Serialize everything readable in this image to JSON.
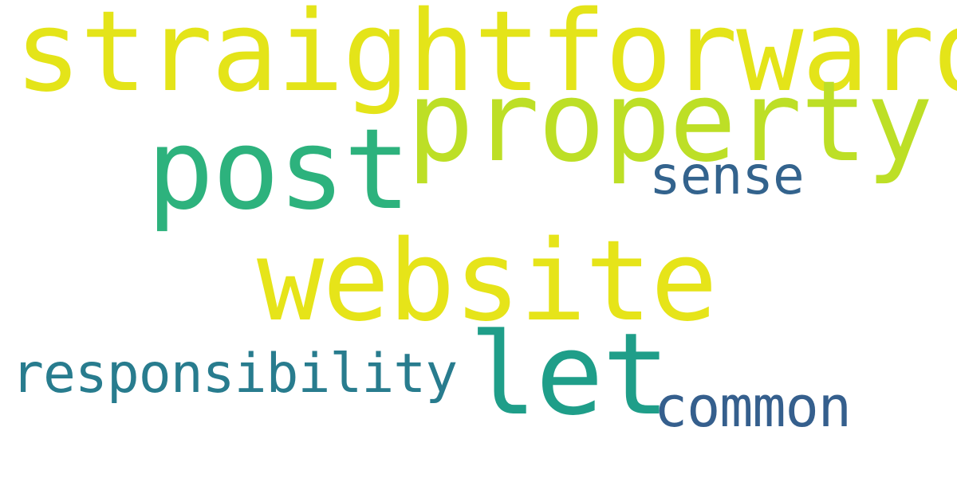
{
  "words": [
    {
      "id": "straightforward",
      "text": "straightforward",
      "color": "#e4e419"
    },
    {
      "id": "property",
      "text": "property",
      "color": "#bddf26"
    },
    {
      "id": "post",
      "text": "post",
      "color": "#2db27d"
    },
    {
      "id": "sense",
      "text": "sense",
      "color": "#33638d"
    },
    {
      "id": "website",
      "text": "website",
      "color": "#e6e419"
    },
    {
      "id": "let",
      "text": "let",
      "color": "#1f9e89"
    },
    {
      "id": "responsibility",
      "text": "responsibility",
      "color": "#287c8e"
    },
    {
      "id": "common",
      "text": "common",
      "color": "#355f8d"
    }
  ],
  "colors": {
    "background": "#ffffff"
  }
}
